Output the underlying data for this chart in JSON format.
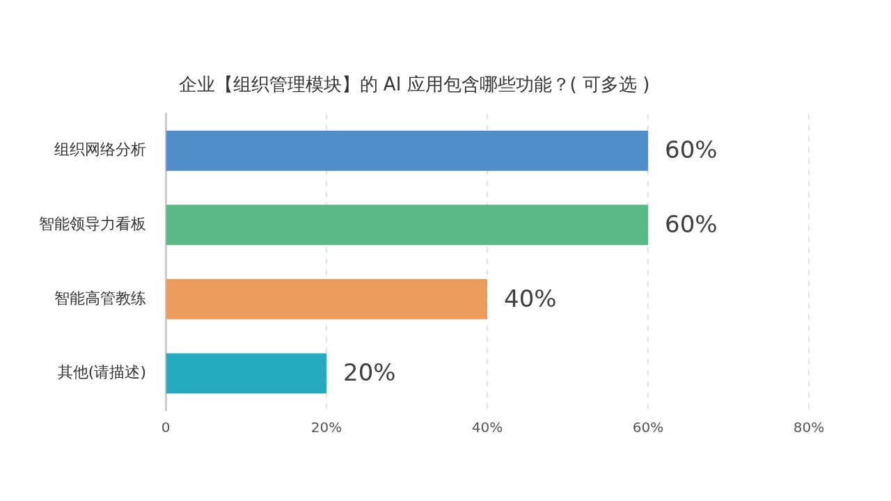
{
  "chart_data": {
    "type": "bar",
    "orientation": "horizontal",
    "title": "企业【组织管理模块】的 AI 应用包含哪些功能？( 可多选 )",
    "categories": [
      "组织网络分析",
      "智能领导力看板",
      "智能高管教练",
      "其他(请描述)"
    ],
    "values": [
      60,
      60,
      40,
      20
    ],
    "colors": [
      "#4f8dcb",
      "#5ab887",
      "#ec9c5a",
      "#26aabf"
    ],
    "value_labels": [
      "60%",
      "60%",
      "40%",
      "20%"
    ],
    "xlim": [
      0,
      80
    ],
    "xticks": [
      0,
      {
        "value": 20,
        "label": "20%"
      },
      {
        "value": 40,
        "label": "40%"
      },
      {
        "value": 60,
        "label": "60%"
      },
      {
        "value": 80,
        "label": "80%"
      }
    ],
    "grid": "x",
    "legend": false
  }
}
